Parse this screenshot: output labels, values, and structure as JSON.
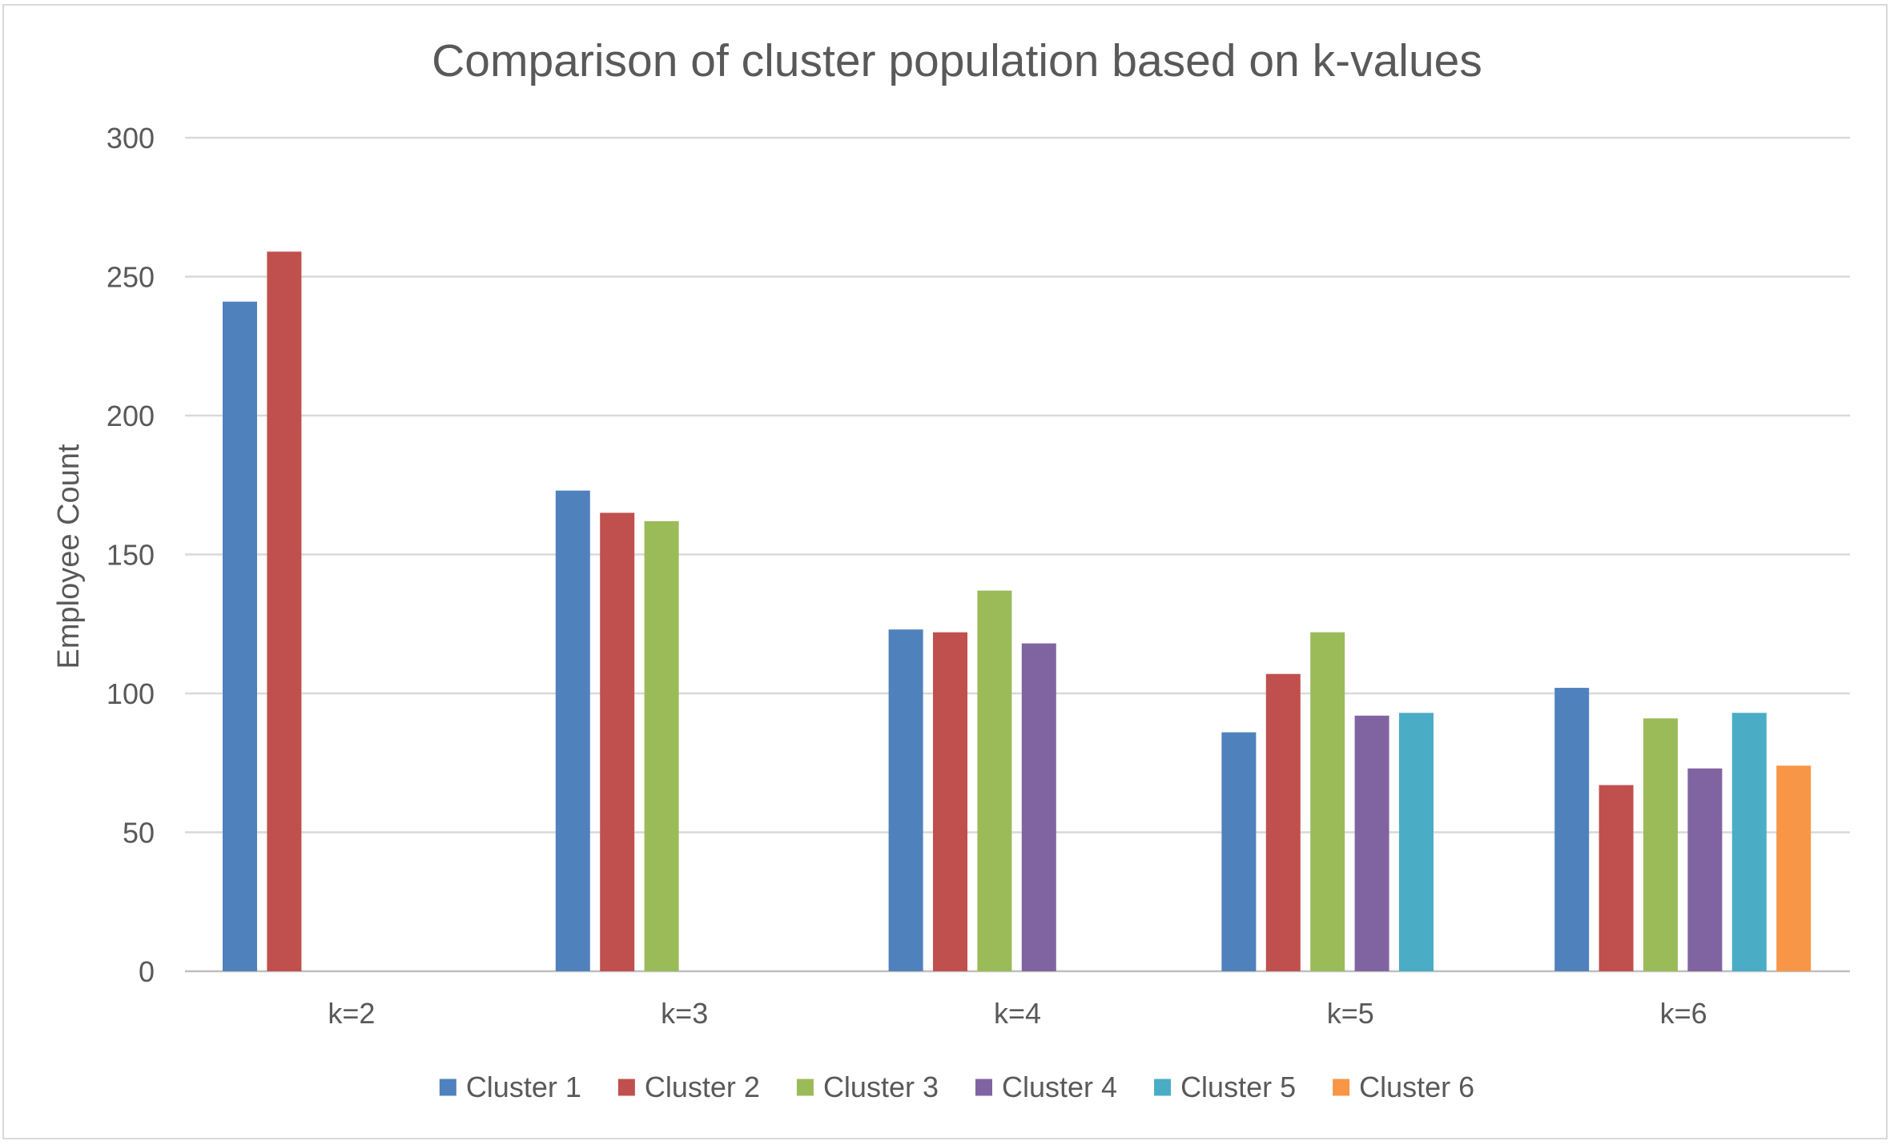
{
  "chart_data": {
    "type": "bar",
    "title": "Comparison of cluster population based on k-values",
    "xlabel": "",
    "ylabel": "Employee Count",
    "categories": [
      "k=2",
      "k=3",
      "k=4",
      "k=5",
      "k=6"
    ],
    "ylim": [
      0,
      300
    ],
    "yticks": [
      0,
      50,
      100,
      150,
      200,
      250,
      300
    ],
    "grid": true,
    "legend_position": "bottom",
    "series": [
      {
        "name": "Cluster 1",
        "color": "#4f81bd",
        "values": [
          241,
          173,
          123,
          86,
          102
        ]
      },
      {
        "name": "Cluster 2",
        "color": "#c0504d",
        "values": [
          259,
          165,
          122,
          107,
          67
        ]
      },
      {
        "name": "Cluster 3",
        "color": "#9bbb59",
        "values": [
          null,
          162,
          137,
          122,
          91
        ]
      },
      {
        "name": "Cluster 4",
        "color": "#8064a2",
        "values": [
          null,
          null,
          118,
          92,
          73
        ]
      },
      {
        "name": "Cluster 5",
        "color": "#4bacc6",
        "values": [
          null,
          null,
          null,
          93,
          93
        ]
      },
      {
        "name": "Cluster 6",
        "color": "#f79646",
        "values": [
          null,
          null,
          null,
          null,
          74
        ]
      }
    ]
  }
}
